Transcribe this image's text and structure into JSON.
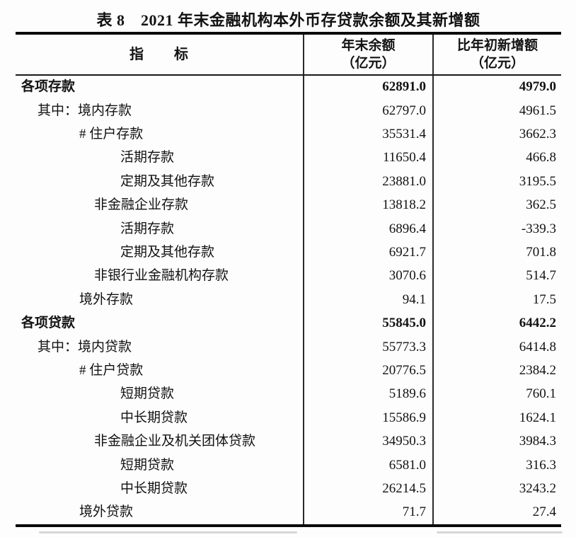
{
  "page": {
    "title": "表 8　2021 年末金融机构本外币存贷款余额及其新增额"
  },
  "table": {
    "columns": {
      "indicator": "指　　标",
      "balance": [
        "年末余额",
        "（亿元）"
      ],
      "increase": [
        "比年初新增额",
        "（亿元）"
      ]
    },
    "rows": [
      {
        "label": "各项存款",
        "indent": 0,
        "bold": true,
        "balance": "62891.0",
        "increase": "4979.0"
      },
      {
        "label": "其中：境内存款",
        "indent": 1,
        "bold": false,
        "balance": "62797.0",
        "increase": "4961.5"
      },
      {
        "label": "# 住户存款",
        "indent": 2,
        "bold": false,
        "balance": "35531.4",
        "increase": "3662.3"
      },
      {
        "label": "活期存款",
        "indent": 4,
        "bold": false,
        "balance": "11650.4",
        "increase": "466.8"
      },
      {
        "label": "定期及其他存款",
        "indent": 4,
        "bold": false,
        "balance": "23881.0",
        "increase": "3195.5"
      },
      {
        "label": "非金融企业存款",
        "indent": 3,
        "bold": false,
        "balance": "13818.2",
        "increase": "362.5"
      },
      {
        "label": "活期存款",
        "indent": 4,
        "bold": false,
        "balance": "6896.4",
        "increase": "-339.3"
      },
      {
        "label": "定期及其他存款",
        "indent": 4,
        "bold": false,
        "balance": "6921.7",
        "increase": "701.8"
      },
      {
        "label": "非银行业金融机构存款",
        "indent": 3,
        "bold": false,
        "balance": "3070.6",
        "increase": "514.7"
      },
      {
        "label": "境外存款",
        "indent": 2,
        "bold": false,
        "balance": "94.1",
        "increase": "17.5"
      },
      {
        "label": "各项贷款",
        "indent": 0,
        "bold": true,
        "balance": "55845.0",
        "increase": "6442.2"
      },
      {
        "label": "其中：境内贷款",
        "indent": 1,
        "bold": false,
        "balance": "55773.3",
        "increase": "6414.8"
      },
      {
        "label": "# 住户贷款",
        "indent": 2,
        "bold": false,
        "balance": "20776.5",
        "increase": "2384.2"
      },
      {
        "label": "短期贷款",
        "indent": 4,
        "bold": false,
        "balance": "5189.6",
        "increase": "760.1"
      },
      {
        "label": "中长期贷款",
        "indent": 4,
        "bold": false,
        "balance": "15586.9",
        "increase": "1624.1"
      },
      {
        "label": "非金融企业及机关团体贷款",
        "indent": 3,
        "bold": false,
        "balance": "34950.3",
        "increase": "3984.3"
      },
      {
        "label": "短期贷款",
        "indent": 4,
        "bold": false,
        "balance": "6581.0",
        "increase": "316.3"
      },
      {
        "label": "中长期贷款",
        "indent": 4,
        "bold": false,
        "balance": "26214.5",
        "increase": "3243.2"
      },
      {
        "label": "境外贷款",
        "indent": 2,
        "bold": false,
        "balance": "71.7",
        "increase": "27.4"
      }
    ]
  }
}
